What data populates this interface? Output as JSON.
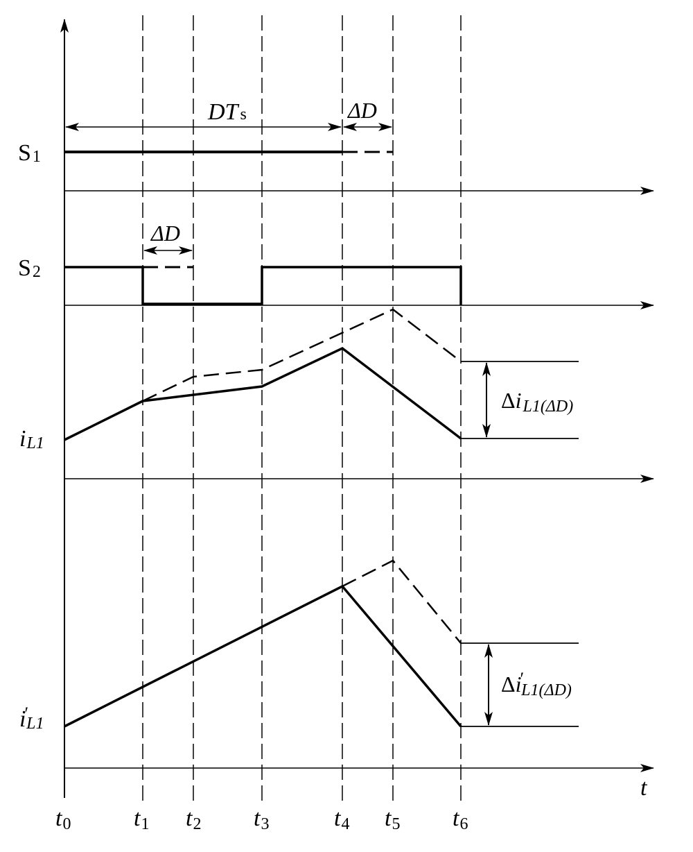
{
  "signals": {
    "s1": {
      "main": "S",
      "sub": "1"
    },
    "s2": {
      "main": "S",
      "sub": "2"
    },
    "iL1": {
      "main": "i",
      "sub": "L1"
    },
    "iL1p": {
      "main": "i",
      "prime": "′",
      "sub": "L1"
    }
  },
  "annotations": {
    "dts": {
      "main": "DT",
      "sub": "s"
    },
    "delta_d_top": "ΔD",
    "delta_d_s2": "ΔD",
    "delta_i": {
      "delta": "Δ",
      "i": "i",
      "sub": "L1(ΔD)"
    },
    "delta_ip": {
      "delta": "Δ",
      "i": "i",
      "prime": "′",
      "sub": "L1(ΔD)"
    }
  },
  "time_axis": {
    "label": "t",
    "ticks": [
      {
        "main": "t",
        "sub": "0"
      },
      {
        "main": "t",
        "sub": "1"
      },
      {
        "main": "t",
        "sub": "2"
      },
      {
        "main": "t",
        "sub": "3"
      },
      {
        "main": "t",
        "sub": "4"
      },
      {
        "main": "t",
        "sub": "5"
      },
      {
        "main": "t",
        "sub": "6"
      }
    ]
  },
  "colors": {
    "ink": "#000000",
    "background": "#ffffff"
  }
}
